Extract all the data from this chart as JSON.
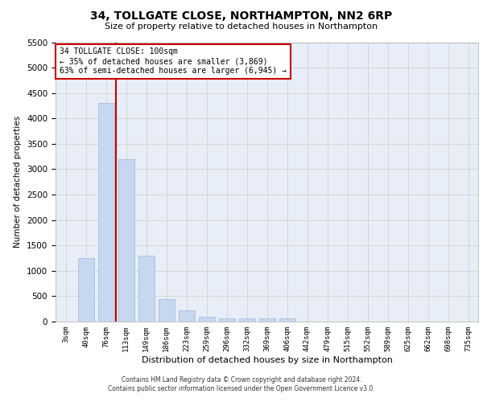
{
  "title1": "34, TOLLGATE CLOSE, NORTHAMPTON, NN2 6RP",
  "title2": "Size of property relative to detached houses in Northampton",
  "xlabel": "Distribution of detached houses by size in Northampton",
  "ylabel": "Number of detached properties",
  "categories": [
    "3sqm",
    "40sqm",
    "76sqm",
    "113sqm",
    "149sqm",
    "186sqm",
    "223sqm",
    "259sqm",
    "296sqm",
    "332sqm",
    "369sqm",
    "406sqm",
    "442sqm",
    "479sqm",
    "515sqm",
    "552sqm",
    "589sqm",
    "625sqm",
    "662sqm",
    "698sqm",
    "735sqm"
  ],
  "values": [
    0,
    1250,
    4300,
    3200,
    1300,
    450,
    220,
    90,
    70,
    70,
    70,
    70,
    0,
    0,
    0,
    0,
    0,
    0,
    0,
    0,
    0
  ],
  "bar_color": "#c5d8f0",
  "bar_edge_color": "#a0b8d8",
  "grid_color": "#cccccc",
  "bg_color": "#e8eef7",
  "annotation_box_color": "#ffffff",
  "annotation_box_edge": "#cc0000",
  "vline_color": "#cc0000",
  "vline_x": 2.5,
  "annotation_title": "34 TOLLGATE CLOSE: 100sqm",
  "annotation_line1": "← 35% of detached houses are smaller (3,869)",
  "annotation_line2": "63% of semi-detached houses are larger (6,945) →",
  "ylim": [
    0,
    5500
  ],
  "yticks": [
    0,
    500,
    1000,
    1500,
    2000,
    2500,
    3000,
    3500,
    4000,
    4500,
    5000,
    5500
  ],
  "footer1": "Contains HM Land Registry data © Crown copyright and database right 2024.",
  "footer2": "Contains public sector information licensed under the Open Government Licence v3.0."
}
